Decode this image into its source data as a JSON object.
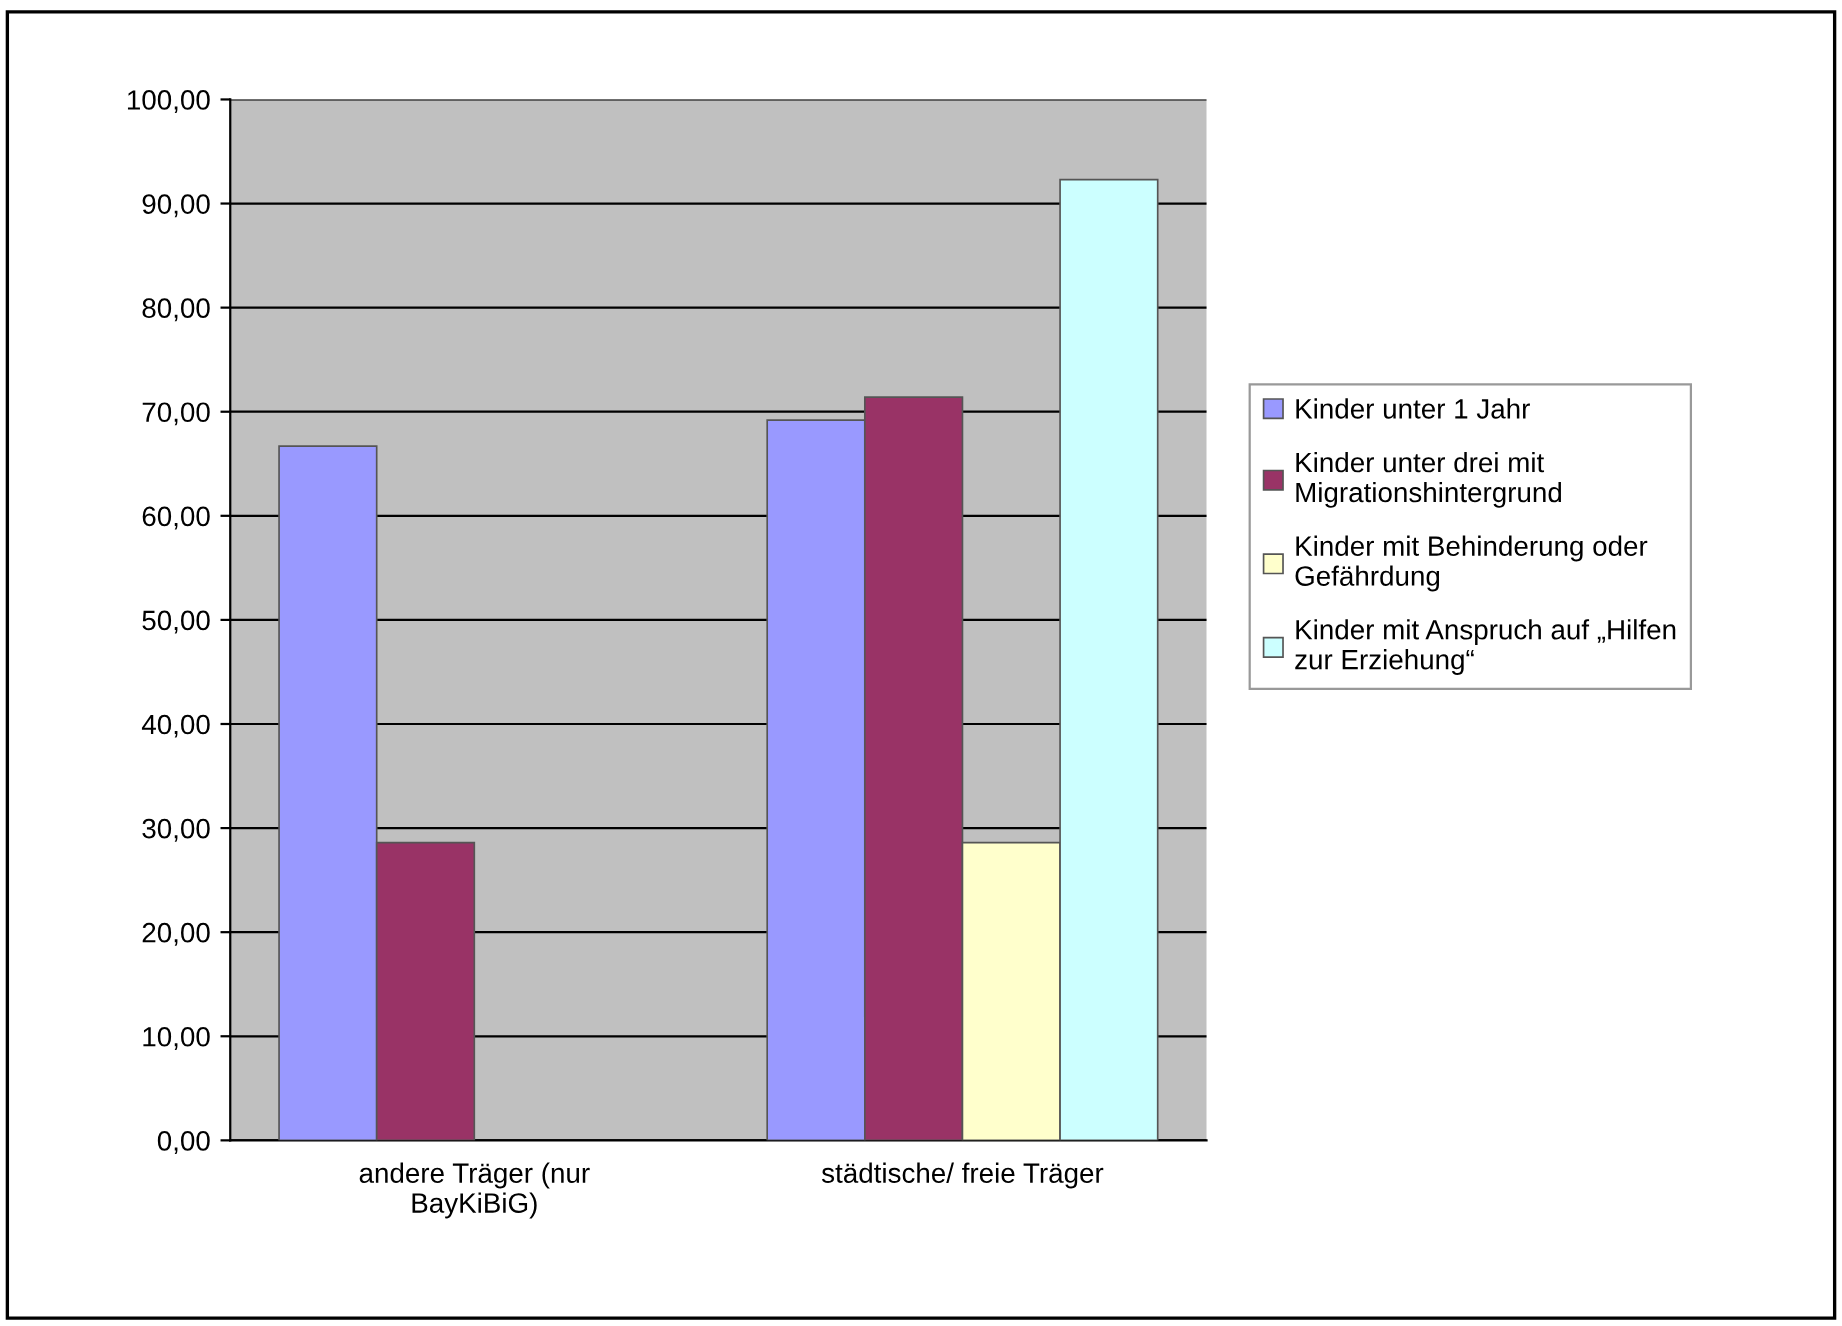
{
  "chart_data": {
    "type": "bar",
    "categories": [
      "andere Träger (nur\nBayKiBiG)",
      "städtische/ freie Träger"
    ],
    "series": [
      {
        "name": "Kinder unter 1 Jahr",
        "color": "#9999ff",
        "values": [
          66.7,
          69.2
        ]
      },
      {
        "name": "Kinder unter drei mit\nMigrationshintergrund",
        "color": "#993366",
        "values": [
          28.6,
          71.4
        ]
      },
      {
        "name": "Kinder mit Behinderung oder\nGefährdung",
        "color": "#ffffcc",
        "values": [
          null,
          28.6
        ]
      },
      {
        "name": "Kinder mit Anspruch auf „Hilfen\nzur Erziehung“",
        "color": "#ccffff",
        "values": [
          null,
          92.3
        ]
      }
    ],
    "ylim": [
      0,
      100
    ],
    "yticks": [
      {
        "value": 0,
        "label": "0,00"
      },
      {
        "value": 10,
        "label": "10,00"
      },
      {
        "value": 20,
        "label": "20,00"
      },
      {
        "value": 30,
        "label": "30,00"
      },
      {
        "value": 40,
        "label": "40,00"
      },
      {
        "value": 50,
        "label": "50,00"
      },
      {
        "value": 60,
        "label": "60,00"
      },
      {
        "value": 70,
        "label": "70,00"
      },
      {
        "value": 80,
        "label": "80,00"
      },
      {
        "value": 90,
        "label": "90,00"
      },
      {
        "value": 100,
        "label": "100,00"
      }
    ],
    "grid": "y",
    "legend": "right"
  }
}
